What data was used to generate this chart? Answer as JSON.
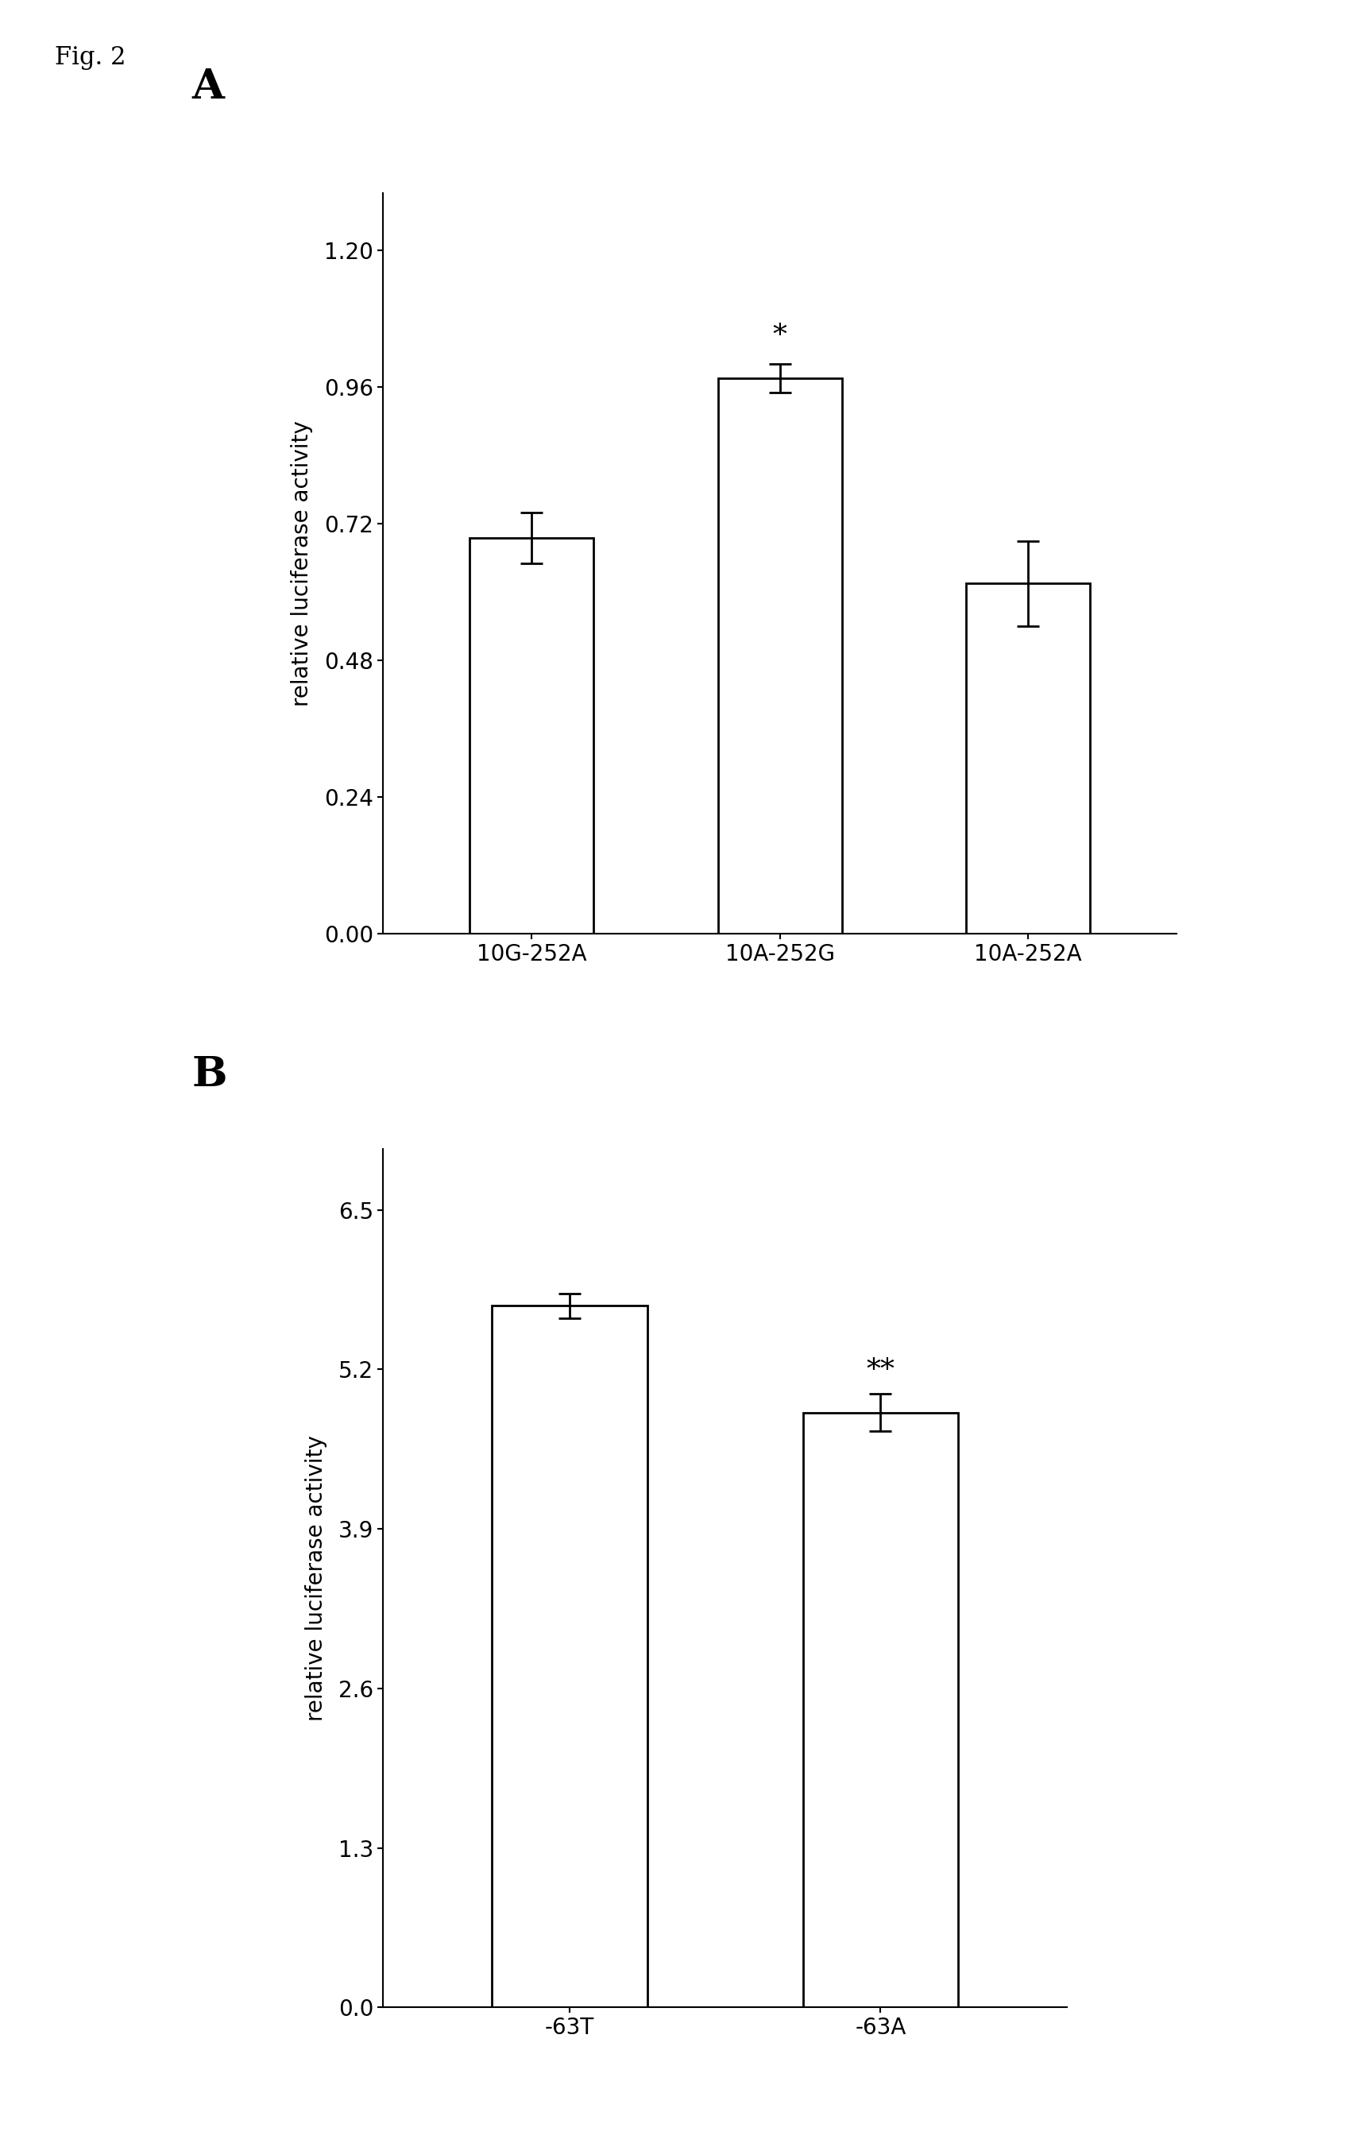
{
  "fig_label": "Fig. 2",
  "panel_A": {
    "label": "A",
    "categories": [
      "10G-252A",
      "10A-252G",
      "10A-252A"
    ],
    "values": [
      0.695,
      0.975,
      0.615
    ],
    "errors": [
      0.045,
      0.025,
      0.075
    ],
    "significance": [
      null,
      "*",
      null
    ],
    "ylabel": "relative luciferase activity",
    "yticks": [
      0.0,
      0.24,
      0.48,
      0.72,
      0.96,
      1.2
    ],
    "ylim": [
      0.0,
      1.3
    ],
    "bar_color": "white",
    "bar_edgecolor": "black",
    "bar_linewidth": 2.0
  },
  "panel_B": {
    "label": "B",
    "categories": [
      "-63T",
      "-63A"
    ],
    "values": [
      5.72,
      4.85
    ],
    "errors": [
      0.1,
      0.15
    ],
    "significance": [
      null,
      "**"
    ],
    "ylabel": "relative luciferase activity",
    "yticks": [
      0.0,
      1.3,
      2.6,
      3.9,
      5.2,
      6.5
    ],
    "ylim": [
      0.0,
      7.0
    ],
    "bar_color": "white",
    "bar_edgecolor": "black",
    "bar_linewidth": 2.0
  },
  "background_color": "white",
  "tick_fontsize": 20,
  "label_fontsize": 20,
  "panel_label_fontsize": 38,
  "fig_label_fontsize": 22,
  "sig_fontsize": 26
}
